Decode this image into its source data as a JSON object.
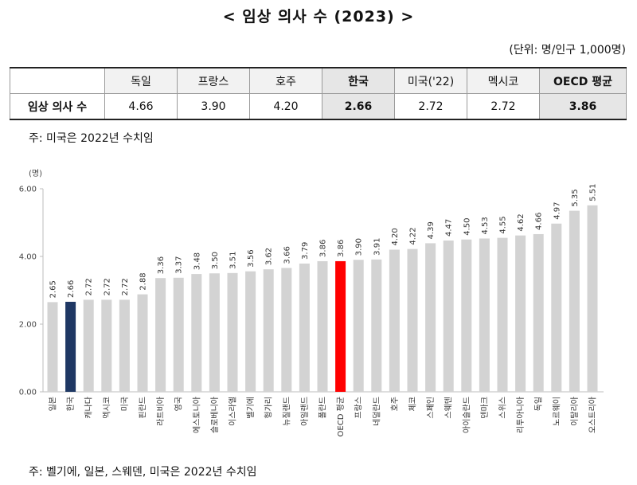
{
  "title": "< 임상 의사 수 (2023) >",
  "unit": "(단위: 명/인구 1,000명)",
  "summary_table": {
    "row_label": "임상 의사 수",
    "columns": [
      "독일",
      "프랑스",
      "호주",
      "한국",
      "미국('22)",
      "멕시코",
      "OECD 평균"
    ],
    "values": [
      "4.66",
      "3.90",
      "4.20",
      "2.66",
      "2.72",
      "2.72",
      "3.86"
    ]
  },
  "note_top": "주: 미국은 2022년 수치임",
  "note_bottom": "주: 벨기에, 일본, 스웨덴, 미국은 2022년 수치임",
  "colors": {
    "default_bar": "#d3d3d3",
    "korea_bar": "#1f3864",
    "oecd_bar": "#ff0000"
  },
  "chart_data": {
    "type": "bar",
    "ylabel": "(명)",
    "ylim": [
      0,
      6
    ],
    "yticks": [
      "0.00",
      "2.00",
      "4.00",
      "6.00"
    ],
    "grid": false,
    "categories": [
      "일본",
      "한국",
      "캐나다",
      "멕시코",
      "미국",
      "핀란드",
      "라트비아",
      "영국",
      "에스토니아",
      "슬로베니아",
      "이스라엘",
      "벨기에",
      "헝가리",
      "뉴질랜드",
      "아일랜드",
      "폴란드",
      "OECD 평균",
      "프랑스",
      "네덜란드",
      "호주",
      "체코",
      "스페인",
      "스웨덴",
      "아이슬란드",
      "덴마크",
      "스위스",
      "리투아니아",
      "독일",
      "노르웨이",
      "이탈리아",
      "오스트리아"
    ],
    "values": [
      2.65,
      2.66,
      2.72,
      2.72,
      2.72,
      2.88,
      3.36,
      3.37,
      3.48,
      3.5,
      3.51,
      3.56,
      3.62,
      3.66,
      3.79,
      3.86,
      3.86,
      3.9,
      3.91,
      4.2,
      4.22,
      4.39,
      4.47,
      4.5,
      4.53,
      4.55,
      4.62,
      4.66,
      4.97,
      5.35,
      5.51
    ],
    "value_labels": [
      "2.65",
      "2.66",
      "2.72",
      "2.72",
      "2.72",
      "2.88",
      "3.36",
      "3.37",
      "3.48",
      "3.50",
      "3.51",
      "3.56",
      "3.62",
      "3.66",
      "3.79",
      "3.86",
      "3.86",
      "3.90",
      "3.91",
      "4.20",
      "4.22",
      "4.39",
      "4.47",
      "4.50",
      "4.53",
      "4.55",
      "4.62",
      "4.66",
      "4.97",
      "5.35",
      "5.51"
    ],
    "highlight": {
      "한국": "korea_bar",
      "OECD 평균": "oecd_bar"
    }
  }
}
